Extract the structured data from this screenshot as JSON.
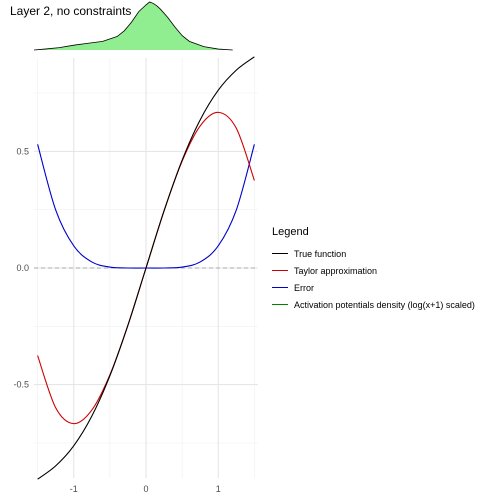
{
  "title": "Layer 2, no constraints",
  "chart_data": {
    "type": "line",
    "title": "Layer 2, no constraints",
    "xlabel": "",
    "ylabel": "",
    "xlim": [
      -1.55,
      1.55
    ],
    "ylim": [
      -0.9,
      0.9
    ],
    "x_ticks": [
      -1,
      0,
      1
    ],
    "y_ticks": [
      -0.5,
      0.0,
      0.5
    ],
    "x_tick_labels": [
      "-1",
      "0",
      "1"
    ],
    "y_tick_labels": [
      "-0.5",
      "0.0",
      "0.5"
    ],
    "hline": 0.0,
    "grid": true,
    "legend_position": "right",
    "legend_title": "Legend",
    "series": [
      {
        "name": "True function",
        "color": "#000000",
        "x": [
          -1.5,
          -1.25,
          -1.0,
          -0.75,
          -0.5,
          -0.25,
          0.0,
          0.25,
          0.5,
          0.75,
          1.0,
          1.25,
          1.5
        ],
        "y": [
          -0.905,
          -0.848,
          -0.762,
          -0.635,
          -0.462,
          -0.245,
          0.0,
          0.245,
          0.462,
          0.635,
          0.762,
          0.848,
          0.905
        ]
      },
      {
        "name": "Taylor approximation",
        "color": "#cc0000",
        "x": [
          -1.5,
          -1.25,
          -1.0,
          -0.75,
          -0.5,
          -0.25,
          0.0,
          0.25,
          0.5,
          0.75,
          1.0,
          1.25,
          1.5
        ],
        "y": [
          -0.375,
          -0.599,
          -0.667,
          -0.609,
          -0.458,
          -0.245,
          0.0,
          0.245,
          0.458,
          0.609,
          0.667,
          0.599,
          0.375
        ]
      },
      {
        "name": "Error",
        "color": "#0000cc",
        "x": [
          -1.5,
          -1.25,
          -1.0,
          -0.75,
          -0.5,
          -0.25,
          0.0,
          0.25,
          0.5,
          0.75,
          1.0,
          1.25,
          1.5
        ],
        "y": [
          0.53,
          0.249,
          0.095,
          0.026,
          0.004,
          0.0,
          0.0,
          0.0,
          0.004,
          0.026,
          0.095,
          0.249,
          0.53
        ]
      },
      {
        "name": "Activation potentials density (log(x+1) scaled)",
        "color": "#008000",
        "fill": "#90ee90",
        "x": [
          -1.6,
          -1.4,
          -1.2,
          -1.0,
          -0.8,
          -0.6,
          -0.4,
          -0.3,
          -0.2,
          -0.1,
          0.0,
          0.05,
          0.1,
          0.15,
          0.2,
          0.3,
          0.4,
          0.5,
          0.6,
          0.8,
          1.0,
          1.2
        ],
        "y": [
          0.0,
          0.02,
          0.05,
          0.1,
          0.14,
          0.18,
          0.28,
          0.4,
          0.58,
          0.8,
          0.94,
          1.0,
          0.97,
          0.92,
          0.85,
          0.68,
          0.48,
          0.3,
          0.18,
          0.07,
          0.02,
          0.0
        ]
      }
    ]
  }
}
